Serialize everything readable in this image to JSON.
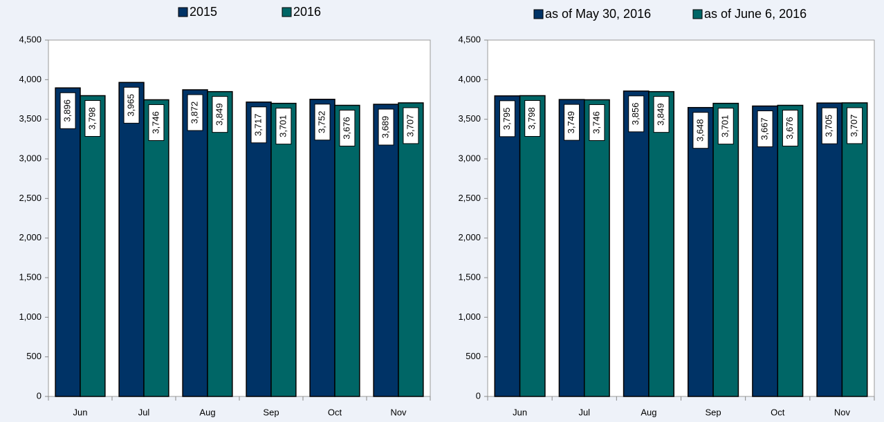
{
  "chart_data": [
    {
      "type": "bar",
      "categories": [
        "Jun",
        "Jul",
        "Aug",
        "Sep",
        "Oct",
        "Nov"
      ],
      "series": [
        {
          "name": "2015",
          "color": "#003366",
          "values": [
            3896,
            3965,
            3872,
            3717,
            3752,
            3689
          ],
          "value_labels": [
            "3,896",
            "3,965",
            "3,872",
            "3,717",
            "3,752",
            "3,689"
          ]
        },
        {
          "name": "2016",
          "color": "#006666",
          "values": [
            3798,
            3746,
            3849,
            3701,
            3676,
            3707
          ],
          "value_labels": [
            "3,798",
            "3,746",
            "3,849",
            "3,701",
            "3,676",
            "3,707"
          ]
        }
      ],
      "ylim": [
        0,
        4500
      ],
      "yticks": [
        0,
        500,
        {
          "value": 1000,
          "label": "1,000"
        },
        {
          "value": 1500,
          "label": "1,500"
        },
        {
          "value": 2000,
          "label": "2,000"
        },
        {
          "value": 2500,
          "label": "2,500"
        },
        {
          "value": 3000,
          "label": "3,000"
        },
        {
          "value": 3500,
          "label": "3,500"
        },
        {
          "value": 4000,
          "label": "4,000"
        },
        {
          "value": 4500,
          "label": "4,500"
        }
      ]
    },
    {
      "type": "bar",
      "categories": [
        "Jun",
        "Jul",
        "Aug",
        "Sep",
        "Oct",
        "Nov"
      ],
      "series": [
        {
          "name": "as of May 30, 2016",
          "color": "#003366",
          "values": [
            3795,
            3749,
            3856,
            3648,
            3667,
            3705
          ],
          "value_labels": [
            "3,795",
            "3,749",
            "3,856",
            "3,648",
            "3,667",
            "3,705"
          ]
        },
        {
          "name": "as of June 6, 2016",
          "color": "#006666",
          "values": [
            3798,
            3746,
            3849,
            3701,
            3676,
            3707
          ],
          "value_labels": [
            "3,798",
            "3,746",
            "3,849",
            "3,701",
            "3,676",
            "3,707"
          ]
        }
      ],
      "ylim": [
        0,
        4500
      ],
      "yticks": [
        0,
        500,
        {
          "value": 1000,
          "label": "1,000"
        },
        {
          "value": 1500,
          "label": "1,500"
        },
        {
          "value": 2000,
          "label": "2,000"
        },
        {
          "value": 2500,
          "label": "2,500"
        },
        {
          "value": 3000,
          "label": "3,000"
        },
        {
          "value": 3500,
          "label": "3,500"
        },
        {
          "value": 4000,
          "label": "4,000"
        },
        {
          "value": 4500,
          "label": "4,500"
        }
      ]
    }
  ]
}
